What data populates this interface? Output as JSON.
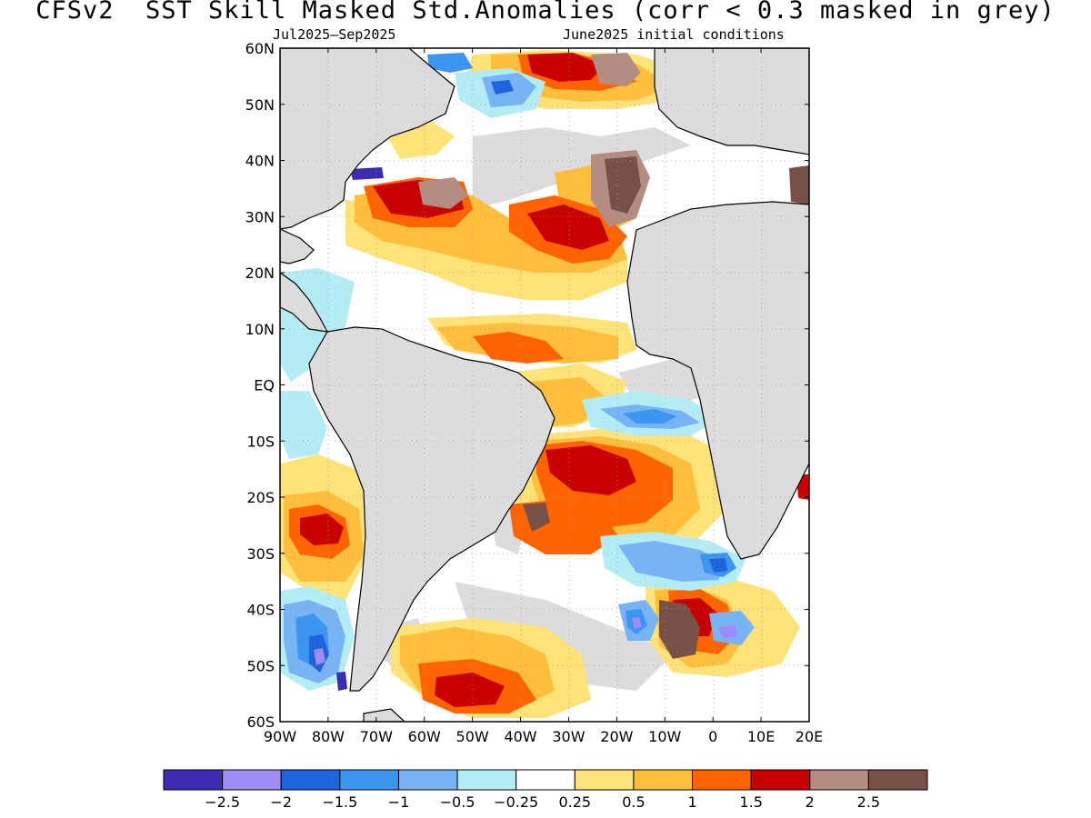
{
  "title": "CFSv2  SST Skill Masked Std.Anomalies (corr < 0.3 masked in grey)",
  "subtitle_left": "Jul2025—Sep2025",
  "subtitle_right": "June2025 initial conditions",
  "map": {
    "lat_labels": [
      "60N",
      "50N",
      "40N",
      "30N",
      "20N",
      "10N",
      "EQ",
      "10S",
      "20S",
      "30S",
      "40S",
      "50S",
      "60S"
    ],
    "lon_labels": [
      "90W",
      "80W",
      "70W",
      "60W",
      "50W",
      "40W",
      "30W",
      "20W",
      "10W",
      "0",
      "10E",
      "20E"
    ],
    "extent": {
      "lon_min": -90,
      "lon_max": 20,
      "lat_min": -60,
      "lat_max": 60
    },
    "land_color": "#dcdcdc",
    "mask_color": "#dcdcdc"
  },
  "legend": {
    "colors": [
      "#3c2cb4",
      "#9c8cf4",
      "#1e64dc",
      "#3c96f0",
      "#78b4f4",
      "#b4ecf4",
      "#ffffff",
      "#ffe278",
      "#ffbe3c",
      "#ff6400",
      "#c80000",
      "#b48c82",
      "#785046"
    ],
    "labels": [
      "-2.5",
      "-2",
      "-1.5",
      "-1",
      "-0.5",
      "-0.25",
      "0.25",
      "0.5",
      "1",
      "1.5",
      "2",
      "2.5"
    ]
  }
}
